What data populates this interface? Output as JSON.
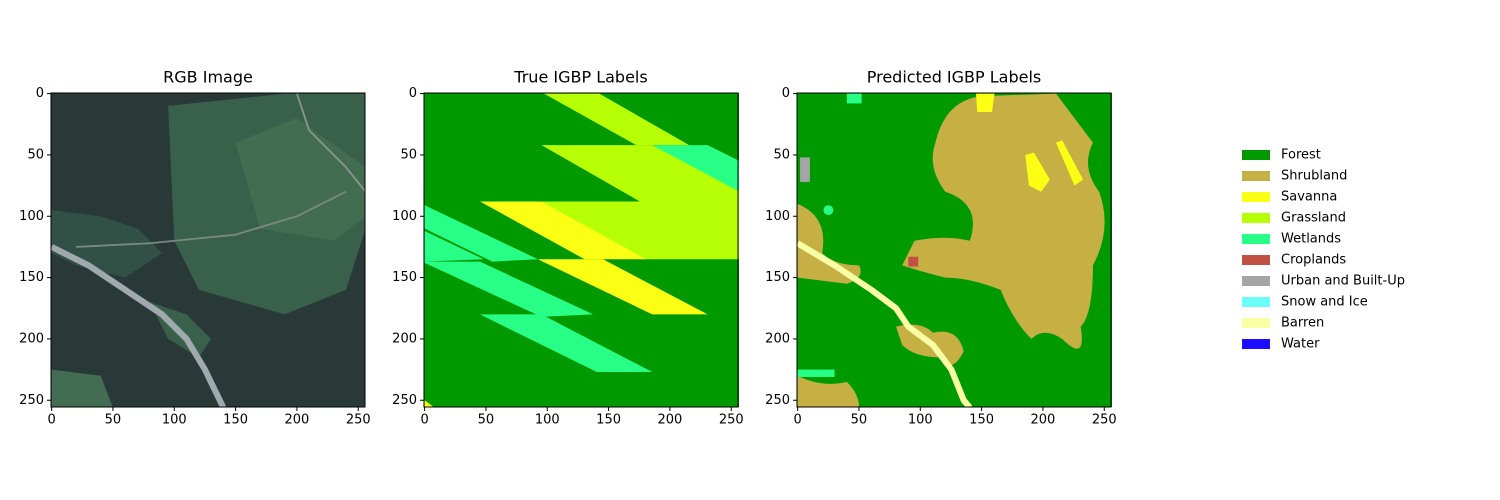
{
  "chart_data": [
    {
      "type": "image",
      "title": "RGB Image",
      "xlim": [
        -0.5,
        255.5
      ],
      "ylim": [
        255.5,
        -0.5
      ],
      "xticks": [
        0,
        50,
        100,
        150,
        200,
        250
      ],
      "yticks": [
        0,
        50,
        100,
        150,
        200,
        250
      ]
    },
    {
      "type": "image",
      "title": "True IGBP Labels",
      "xlim": [
        -0.5,
        255.5
      ],
      "ylim": [
        255.5,
        -0.5
      ],
      "xticks": [
        0,
        50,
        100,
        150,
        200,
        250
      ],
      "yticks": [
        0,
        50,
        100,
        150,
        200,
        250
      ]
    },
    {
      "type": "image",
      "title": "Predicted IGBP Labels",
      "xlim": [
        -0.5,
        255.5
      ],
      "ylim": [
        255.5,
        -0.5
      ],
      "xticks": [
        0,
        50,
        100,
        150,
        200,
        250
      ],
      "yticks": [
        0,
        50,
        100,
        150,
        200,
        250
      ]
    }
  ],
  "legend": [
    {
      "name": "Forest",
      "color": "#009900"
    },
    {
      "name": "Shrubland",
      "color": "#c6b044"
    },
    {
      "name": "Savanna",
      "color": "#fbff13"
    },
    {
      "name": "Grassland",
      "color": "#b6ff05"
    },
    {
      "name": "Wetlands",
      "color": "#27ff87"
    },
    {
      "name": "Croplands",
      "color": "#c24f44"
    },
    {
      "name": "Urban and Built-Up",
      "color": "#a5a5a5"
    },
    {
      "name": "Snow and Ice",
      "color": "#69fff8"
    },
    {
      "name": "Barren",
      "color": "#f9ffa4"
    },
    {
      "name": "Water",
      "color": "#1c0dff"
    }
  ]
}
